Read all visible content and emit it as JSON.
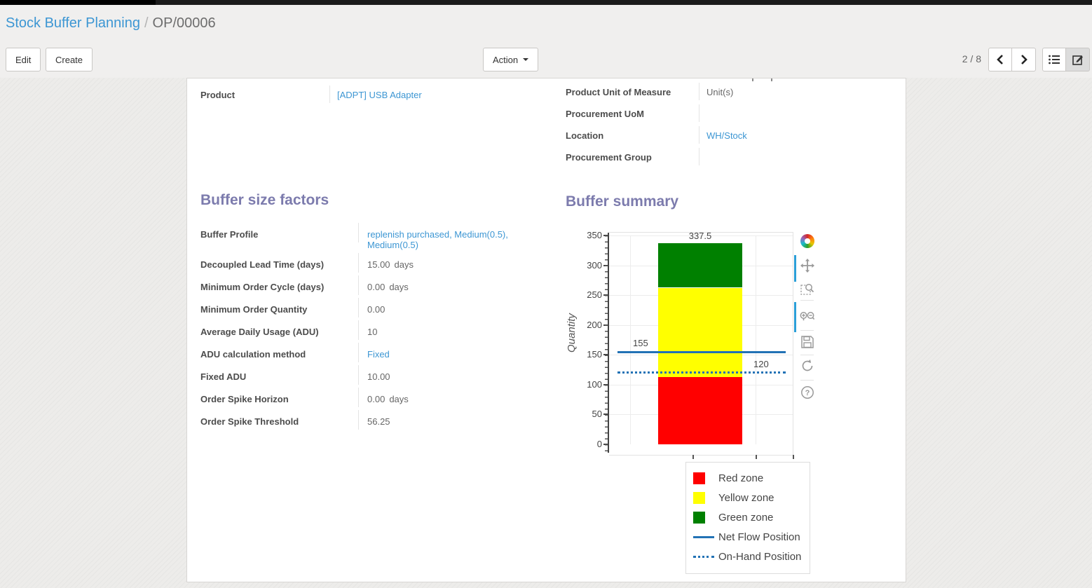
{
  "breadcrumb": {
    "parent": "Stock Buffer Planning",
    "separator": "/",
    "current": "OP/00006"
  },
  "controls": {
    "edit": "Edit",
    "create": "Create",
    "action": "Action",
    "pager": "2 / 8"
  },
  "form": {
    "left_fields": [
      {
        "label": "Product",
        "value": "[ADPT] USB Adapter",
        "link": true
      }
    ],
    "right_fields": [
      {
        "label": "Product Unit of Measure",
        "value": "Unit(s)",
        "link": false
      },
      {
        "label": "Procurement UoM",
        "value": "",
        "link": false
      },
      {
        "label": "Location",
        "value": "WH/Stock",
        "link": true
      },
      {
        "label": "Procurement Group",
        "value": "",
        "link": false
      }
    ],
    "factors": {
      "title": "Buffer size factors",
      "rows": [
        {
          "label": "Buffer Profile",
          "value": "replenish purchased, Medium(0.5), Medium(0.5)",
          "link": true
        },
        {
          "label": "Decoupled Lead Time (days)",
          "value": "15.00",
          "unit": "days"
        },
        {
          "label": "Minimum Order Cycle (days)",
          "value": "0.00",
          "unit": "days"
        },
        {
          "label": "Minimum Order Quantity",
          "value": "0.00"
        },
        {
          "label": "Average Daily Usage (ADU)",
          "value": "10"
        },
        {
          "label": "ADU calculation method",
          "value": "Fixed",
          "link": true
        },
        {
          "label": "Fixed ADU",
          "value": "10.00"
        },
        {
          "label": "Order Spike Horizon",
          "value": "0.00",
          "unit": "days"
        },
        {
          "label": "Order Spike Threshold",
          "value": "56.25"
        }
      ]
    },
    "summary_title": "Buffer summary"
  },
  "chart_data": {
    "type": "bar",
    "title": "Buffer summary",
    "ylabel": "Quantity",
    "ylim": [
      0,
      350
    ],
    "ytick_step": 50,
    "grid": true,
    "legend_position": "bottom-right",
    "zones": [
      {
        "name": "Red zone",
        "color": "#ff0000",
        "from": 0,
        "to": 112.5
      },
      {
        "name": "Yellow zone",
        "color": "#ffff00",
        "from": 112.5,
        "to": 262.5
      },
      {
        "name": "Green zone",
        "color": "#008000",
        "from": 262.5,
        "to": 337.5
      }
    ],
    "lines": [
      {
        "name": "Net Flow Position",
        "value": 155,
        "style": "solid",
        "color": "#2272b5",
        "label_side": "left"
      },
      {
        "name": "On-Hand Position",
        "value": 120,
        "style": "dotted",
        "color": "#2272b5",
        "label_side": "right"
      }
    ],
    "legend": [
      {
        "swatch": "square",
        "color": "#ff0000",
        "label": "Red zone"
      },
      {
        "swatch": "square",
        "color": "#ffff00",
        "label": "Yellow zone"
      },
      {
        "swatch": "square",
        "color": "#008000",
        "label": "Green zone"
      },
      {
        "swatch": "line",
        "color": "#2272b5",
        "label": "Net Flow Position"
      },
      {
        "swatch": "dots",
        "color": "#2272b5",
        "label": "On-Hand Position"
      }
    ]
  }
}
